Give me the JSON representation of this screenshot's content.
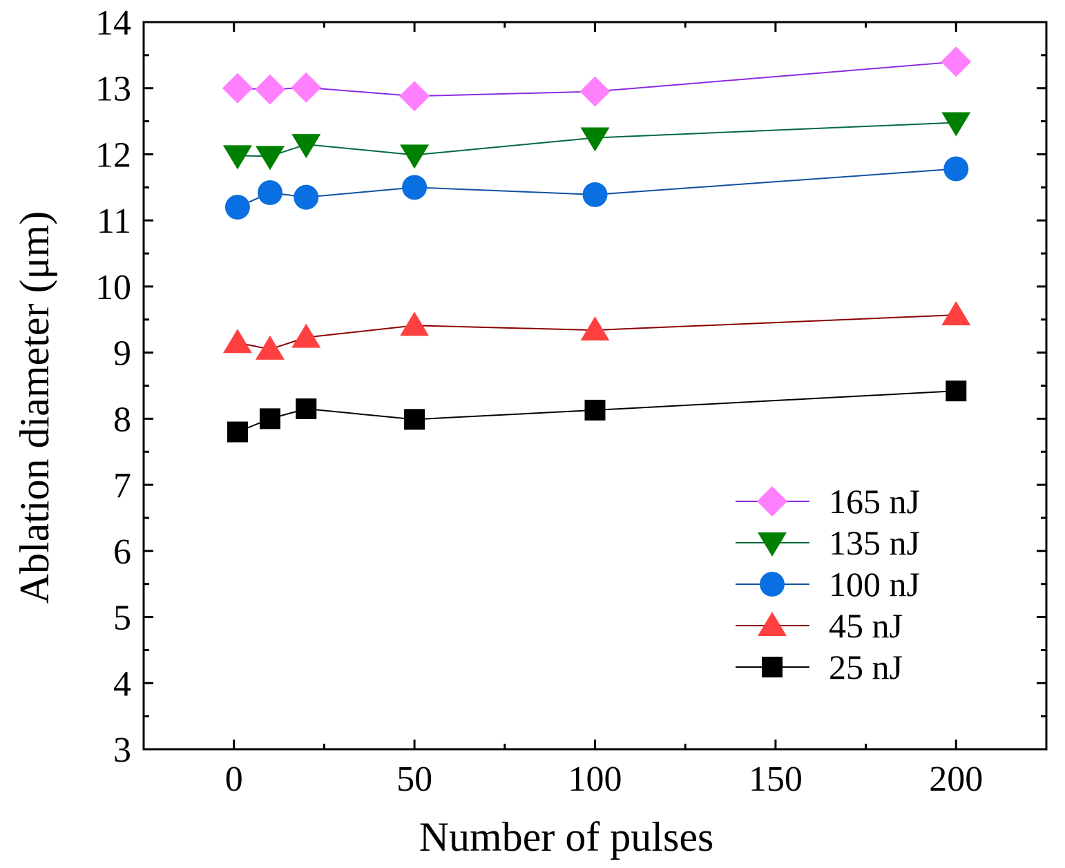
{
  "chart_data": {
    "type": "line",
    "title": "",
    "xlabel": "Number of pulses",
    "ylabel": "Ablation  diameter (μm)",
    "xlim": [
      -25,
      225
    ],
    "ylim": [
      3,
      14
    ],
    "xticks": [
      0,
      50,
      100,
      150,
      200
    ],
    "yticks": [
      3,
      4,
      5,
      6,
      7,
      8,
      9,
      10,
      11,
      12,
      13,
      14
    ],
    "grid": false,
    "legend_position": "bottom-right",
    "x": [
      1,
      10,
      20,
      50,
      100,
      200
    ],
    "series": [
      {
        "name": "165  nJ",
        "values": [
          13.0,
          12.98,
          13.01,
          12.88,
          12.95,
          13.4
        ],
        "color": "#ff80ff",
        "line_color": "#8a2be2",
        "marker": "diamond"
      },
      {
        "name": "135  nJ",
        "values": [
          11.98,
          11.97,
          12.15,
          11.99,
          12.25,
          12.48
        ],
        "color": "#008000",
        "line_color": "#006a3c",
        "marker": "triangle-down"
      },
      {
        "name": "100  nJ",
        "values": [
          11.2,
          11.42,
          11.35,
          11.5,
          11.39,
          11.78
        ],
        "color": "#0a6fe0",
        "line_color": "#1050a0",
        "marker": "circle"
      },
      {
        "name": "45  nJ",
        "values": [
          9.15,
          9.05,
          9.23,
          9.41,
          9.34,
          9.57
        ],
        "color": "#ff4040",
        "line_color": "#8b0000",
        "marker": "triangle-up"
      },
      {
        "name": "25  nJ",
        "values": [
          7.8,
          8.0,
          8.15,
          7.99,
          8.13,
          8.42
        ],
        "color": "#000000",
        "line_color": "#000000",
        "marker": "square"
      }
    ]
  }
}
